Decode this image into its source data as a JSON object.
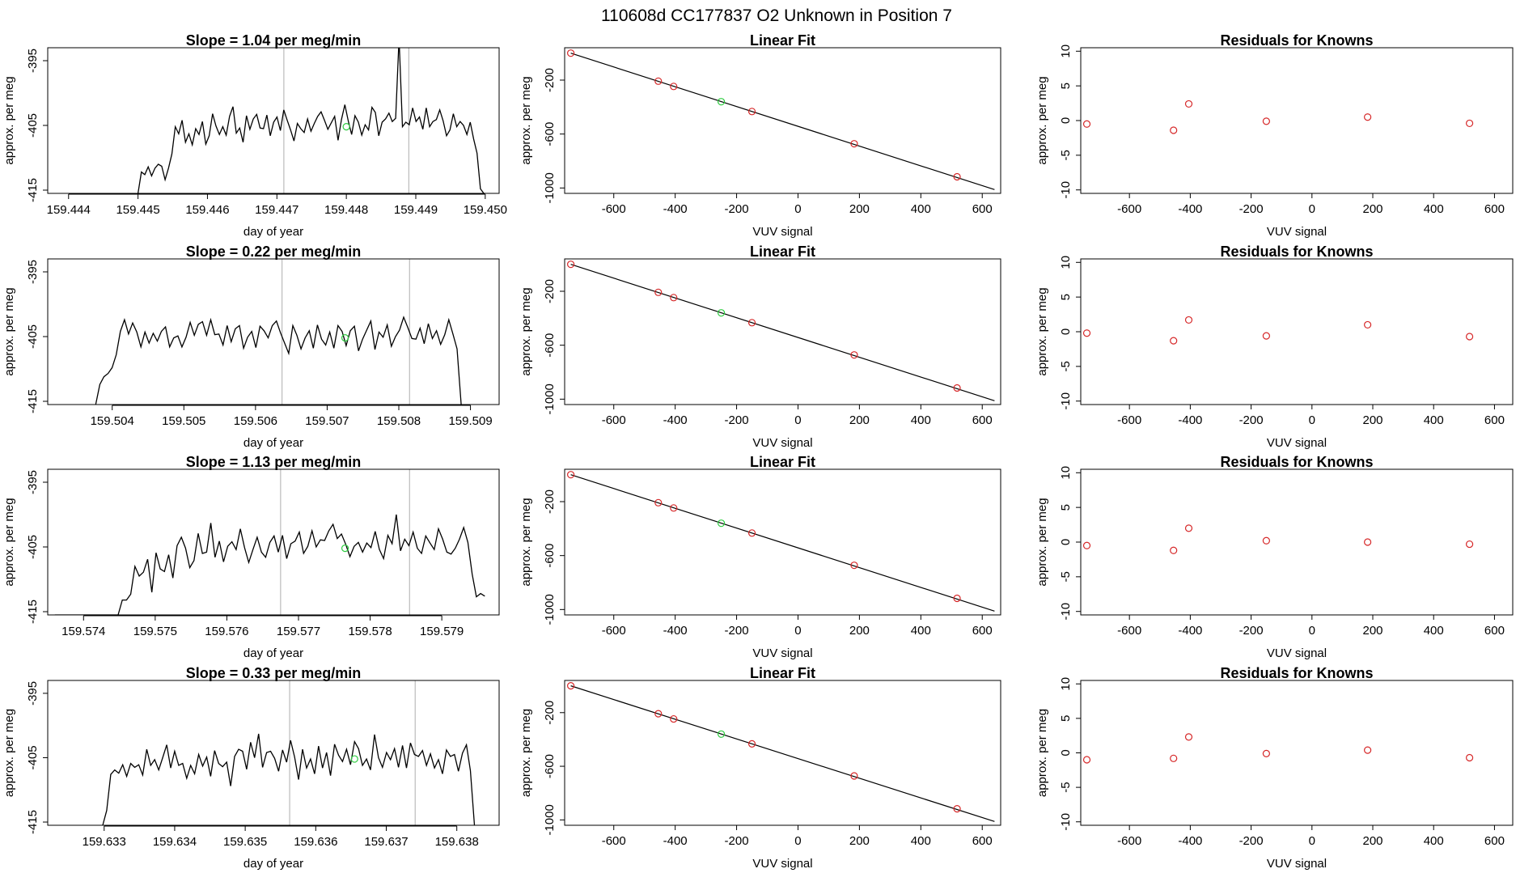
{
  "figure": {
    "super_title": "110608d      CC177837   O2 Unknown in Position  7",
    "colors": {
      "known": "#d62728",
      "unknown": "#2ecc40",
      "line": "#000000",
      "vline": "#bbbbbb",
      "frame": "#000000"
    }
  },
  "chart_data": [
    {
      "type": "line",
      "row": 0,
      "panel": "timeseries",
      "title": "Slope =  1.04  per meg/min",
      "xlabel": "day of year",
      "ylabel": "approx. per meg",
      "xlim": [
        159.4437,
        159.4502
      ],
      "ylim": [
        -415.5,
        -393
      ],
      "xticks": [
        "159.444",
        "159.445",
        "159.446",
        "159.447",
        "159.448",
        "159.449",
        "159.450"
      ],
      "yticks": [
        "-395",
        "-405",
        "-415"
      ],
      "series_start": 159.445,
      "series_end": 159.44998,
      "vlines": [
        159.4471,
        159.4489
      ],
      "unknown_point": [
        159.448,
        -405.2
      ],
      "values": [
        -415.5,
        -412.2,
        -412.6,
        -411.4,
        -412.8,
        -411.6,
        -411.0,
        -411.3,
        -413.4,
        -411.6,
        -409.4,
        -405.2,
        -406.3,
        -404.2,
        -407.6,
        -406.3,
        -408.0,
        -405.5,
        -406.4,
        -404.4,
        -407.9,
        -406.6,
        -403.2,
        -405.1,
        -406.4,
        -405.2,
        -406.5,
        -403.6,
        -402.1,
        -406.2,
        -405.4,
        -407.6,
        -403.5,
        -405.6,
        -404.0,
        -403.3,
        -405.4,
        -405.5,
        -403.4,
        -406.6,
        -404.5,
        -403.7,
        -405.8,
        -402.6,
        -404.2,
        -405.7,
        -407.4,
        -404.7,
        -405.5,
        -406.1,
        -404.0,
        -405.9,
        -404.7,
        -403.6,
        -402.9,
        -404.2,
        -405.6,
        -404.6,
        -403.6,
        -407.3,
        -404.1,
        -401.8,
        -404.3,
        -406.4,
        -403.5,
        -404.5,
        -406.5,
        -404.9,
        -405.7,
        -402.2,
        -403.0,
        -406.6,
        -404.5,
        -404.0,
        -403.1,
        -404.4,
        -403.9,
        -391.5,
        -405.2,
        -404.5,
        -404.9,
        -402.3,
        -404.4,
        -403.7,
        -405.6,
        -402.3,
        -405.2,
        -404.4,
        -404.1,
        -402.6,
        -404.3,
        -406.6,
        -405.7,
        -403.2,
        -405.2,
        -404.4,
        -405.0,
        -406.4,
        -404.5,
        -407.1,
        -409.3,
        -414.8,
        -415.5
      ]
    },
    {
      "type": "scatter",
      "row": 0,
      "panel": "linear_fit",
      "title": "Linear Fit",
      "xlabel": "VUV signal",
      "ylabel": "approx. per meg",
      "xlim": [
        -760,
        660
      ],
      "ylim": [
        -1040,
        40
      ],
      "xticks": [
        -600,
        -400,
        -200,
        0,
        200,
        400,
        600
      ],
      "yticks": [
        -200,
        -600,
        -1000
      ],
      "fit_line": [
        [
          -740,
          0
        ],
        [
          640,
          -1012
        ]
      ],
      "known_x": [
        -740,
        -455,
        -405,
        -150,
        183,
        518
      ],
      "known_y": [
        0,
        -208,
        -247,
        -433,
        -672,
        -917
      ],
      "unknown_point": [
        -250,
        -360
      ]
    },
    {
      "type": "scatter",
      "row": 0,
      "panel": "residuals",
      "title": "Residuals for Knowns",
      "xlabel": "VUV signal",
      "ylabel": "approx. per meg",
      "xlim": [
        -760,
        660
      ],
      "ylim": [
        -10.5,
        10.5
      ],
      "xticks": [
        -600,
        -400,
        -200,
        0,
        200,
        400,
        600
      ],
      "yticks": [
        10,
        5,
        0,
        -5,
        -10
      ],
      "known_x": [
        -740,
        -455,
        -405,
        -150,
        183,
        518
      ],
      "known_y": [
        -0.5,
        -1.4,
        2.4,
        -0.1,
        0.5,
        -0.4
      ]
    },
    {
      "type": "line",
      "row": 1,
      "panel": "timeseries",
      "title": "Slope =  0.22  per meg/min",
      "xlabel": "day of year",
      "ylabel": "approx. per meg",
      "xlim": [
        159.5031,
        159.5094
      ],
      "ylim": [
        -415.5,
        -393
      ],
      "xticks": [
        "159.504",
        "159.505",
        "159.506",
        "159.507",
        "159.508",
        "159.509"
      ],
      "yticks": [
        "-395",
        "-405",
        "-415"
      ],
      "series_start": 159.50377,
      "series_end": 159.50887,
      "vlines": [
        159.50637,
        159.50815
      ],
      "unknown_point": [
        159.50725,
        -405.2
      ],
      "values": [
        -415.5,
        -412.4,
        -411.2,
        -410.7,
        -409.8,
        -407.8,
        -404.2,
        -402.4,
        -404.6,
        -402.9,
        -404.3,
        -406.6,
        -404.3,
        -406.0,
        -404.5,
        -405.7,
        -404.2,
        -403.5,
        -406.6,
        -405.2,
        -404.9,
        -406.6,
        -405.1,
        -402.8,
        -404.8,
        -403.1,
        -402.7,
        -404.8,
        -402.4,
        -404.7,
        -404.6,
        -406.3,
        -403.3,
        -405.8,
        -403.8,
        -403.3,
        -406.8,
        -405.1,
        -404.2,
        -406.7,
        -403.4,
        -404.1,
        -405.2,
        -403.3,
        -402.6,
        -404.4,
        -406.0,
        -407.6,
        -403.3,
        -404.8,
        -406.9,
        -405.2,
        -404.1,
        -406.8,
        -403.2,
        -405.4,
        -406.3,
        -404.3,
        -406.8,
        -403.3,
        -404.2,
        -406.4,
        -404.1,
        -403.4,
        -407.2,
        -405.4,
        -404.0,
        -402.6,
        -407.0,
        -404.3,
        -405.1,
        -403.2,
        -406.5,
        -405.0,
        -404.0,
        -402.0,
        -403.6,
        -405.3,
        -405.4,
        -403.7,
        -406.1,
        -403.0,
        -405.3,
        -404.1,
        -406.2,
        -404.7,
        -402.4,
        -404.6,
        -406.9,
        -415.5
      ]
    },
    {
      "type": "scatter",
      "row": 1,
      "panel": "linear_fit",
      "title": "Linear Fit",
      "xlabel": "VUV signal",
      "ylabel": "approx. per meg",
      "xlim": [
        -760,
        660
      ],
      "ylim": [
        -1040,
        40
      ],
      "xticks": [
        -600,
        -400,
        -200,
        0,
        200,
        400,
        600
      ],
      "yticks": [
        -200,
        -600,
        -1000
      ],
      "fit_line": [
        [
          -740,
          0
        ],
        [
          640,
          -1012
        ]
      ],
      "known_x": [
        -740,
        -455,
        -405,
        -150,
        183,
        518
      ],
      "known_y": [
        0,
        -208,
        -247,
        -433,
        -672,
        -917
      ],
      "unknown_point": [
        -250,
        -360
      ]
    },
    {
      "type": "scatter",
      "row": 1,
      "panel": "residuals",
      "title": "Residuals for Knowns",
      "xlabel": "VUV signal",
      "ylabel": "approx. per meg",
      "xlim": [
        -760,
        660
      ],
      "ylim": [
        -10.5,
        10.5
      ],
      "xticks": [
        -600,
        -400,
        -200,
        0,
        200,
        400,
        600
      ],
      "yticks": [
        10,
        5,
        0,
        -5,
        -10
      ],
      "known_x": [
        -740,
        -455,
        -405,
        -150,
        183,
        518
      ],
      "known_y": [
        -0.2,
        -1.3,
        1.7,
        -0.6,
        1.0,
        -0.7
      ]
    },
    {
      "type": "line",
      "row": 2,
      "panel": "timeseries",
      "title": "Slope =  1.13  per meg/min",
      "xlabel": "day of year",
      "ylabel": "approx. per meg",
      "xlim": [
        159.5735,
        159.5798
      ],
      "ylim": [
        -415.5,
        -393
      ],
      "xticks": [
        "159.574",
        "159.575",
        "159.576",
        "159.577",
        "159.578",
        "159.579"
      ],
      "yticks": [
        "-395",
        "-405",
        "-415"
      ],
      "series_start": 159.5736,
      "series_end": 159.5796,
      "vlines": [
        159.57675,
        159.57855
      ],
      "unknown_point": [
        159.57765,
        -405.2
      ],
      "values": [
        -415.5,
        -415.5,
        -415.5,
        -415.5,
        -415.5,
        -415.5,
        -415.5,
        -415.5,
        -415.5,
        -415.5,
        -415.5,
        -415.5,
        -415.5,
        -415.5,
        -415.5,
        -415.5,
        -413.2,
        -413.2,
        -412.3,
        -408.0,
        -409.5,
        -408.9,
        -406.9,
        -412.0,
        -405.9,
        -408.4,
        -408.8,
        -406.2,
        -409.8,
        -404.8,
        -403.5,
        -405.2,
        -408.2,
        -407.1,
        -402.9,
        -406.0,
        -405.8,
        -401.3,
        -406.6,
        -404.1,
        -407.3,
        -404.9,
        -404.2,
        -405.4,
        -402.2,
        -405.1,
        -407.4,
        -405.4,
        -403.5,
        -405.8,
        -406.6,
        -404.3,
        -403.3,
        -405.8,
        -403.2,
        -406.8,
        -404.5,
        -404.1,
        -402.7,
        -406.0,
        -404.9,
        -402.5,
        -405.0,
        -403.9,
        -404.0,
        -402.5,
        -401.5,
        -403.7,
        -403.0,
        -404.6,
        -406.5,
        -404.9,
        -404.3,
        -405.8,
        -404.4,
        -405.1,
        -402.6,
        -405.4,
        -406.8,
        -403.2,
        -404.5,
        -400.0,
        -405.6,
        -403.8,
        -404.8,
        -402.7,
        -405.2,
        -406.0,
        -403.3,
        -404.4,
        -405.4,
        -402.2,
        -403.8,
        -405.8,
        -406.1,
        -405.2,
        -403.8,
        -402.0,
        -404.3,
        -409.2,
        -412.7,
        -412.2,
        -412.6
      ]
    },
    {
      "type": "scatter",
      "row": 2,
      "panel": "linear_fit",
      "title": "Linear Fit",
      "xlabel": "VUV signal",
      "ylabel": "approx. per meg",
      "xlim": [
        -760,
        660
      ],
      "ylim": [
        -1040,
        40
      ],
      "xticks": [
        -600,
        -400,
        -200,
        0,
        200,
        400,
        600
      ],
      "yticks": [
        -200,
        -600,
        -1000
      ],
      "fit_line": [
        [
          -740,
          0
        ],
        [
          640,
          -1012
        ]
      ],
      "known_x": [
        -740,
        -455,
        -405,
        -150,
        183,
        518
      ],
      "known_y": [
        0,
        -208,
        -247,
        -433,
        -672,
        -917
      ],
      "unknown_point": [
        -250,
        -360
      ]
    },
    {
      "type": "scatter",
      "row": 2,
      "panel": "residuals",
      "title": "Residuals for Knowns",
      "xlabel": "VUV signal",
      "ylabel": "approx. per meg",
      "xlim": [
        -760,
        660
      ],
      "ylim": [
        -10.5,
        10.5
      ],
      "xticks": [
        -600,
        -400,
        -200,
        0,
        200,
        400,
        600
      ],
      "yticks": [
        10,
        5,
        0,
        -5,
        -10
      ],
      "known_x": [
        -740,
        -455,
        -405,
        -150,
        183,
        518
      ],
      "known_y": [
        -0.5,
        -1.2,
        2.0,
        0.2,
        0.0,
        -0.3
      ]
    },
    {
      "type": "line",
      "row": 3,
      "panel": "timeseries",
      "title": "Slope =  0.33  per meg/min",
      "xlabel": "day of year",
      "ylabel": "approx. per meg",
      "xlim": [
        159.6322,
        159.6386
      ],
      "ylim": [
        -415.5,
        -393
      ],
      "xticks": [
        "159.633",
        "159.634",
        "159.635",
        "159.636",
        "159.637",
        "159.638"
      ],
      "yticks": [
        "-395",
        "-405",
        "-415"
      ],
      "series_start": 159.63298,
      "series_end": 159.63825,
      "vlines": [
        159.63563,
        159.63741
      ],
      "unknown_point": [
        159.63655,
        -405.2
      ],
      "values": [
        -415.5,
        -413.2,
        -407.6,
        -406.9,
        -407.4,
        -406.1,
        -407.9,
        -405.9,
        -406.5,
        -406.1,
        -407.7,
        -403.7,
        -406.2,
        -405.3,
        -406.9,
        -405.0,
        -403.0,
        -406.6,
        -404.0,
        -406.2,
        -405.9,
        -408.2,
        -406.2,
        -407.5,
        -404.5,
        -406.3,
        -404.9,
        -407.9,
        -403.9,
        -405.9,
        -406.4,
        -405.7,
        -409.4,
        -404.8,
        -403.7,
        -404.0,
        -406.8,
        -402.6,
        -405.0,
        -401.3,
        -406.5,
        -404.2,
        -404.0,
        -405.1,
        -407.1,
        -403.8,
        -405.7,
        -402.3,
        -404.9,
        -408.4,
        -403.7,
        -406.6,
        -405.2,
        -407.5,
        -403.2,
        -406.6,
        -404.2,
        -407.8,
        -402.9,
        -404.6,
        -405.6,
        -403.7,
        -406.1,
        -402.5,
        -403.6,
        -406.2,
        -405.2,
        -406.9,
        -401.4,
        -405.0,
        -406.5,
        -404.2,
        -405.3,
        -403.6,
        -406.5,
        -403.1,
        -406.6,
        -402.7,
        -404.5,
        -404.8,
        -403.9,
        -406.2,
        -404.4,
        -406.6,
        -405.3,
        -407.5,
        -403.8,
        -404.8,
        -404.5,
        -407.1,
        -404.3,
        -403.0,
        -407.0,
        -415.5
      ]
    },
    {
      "type": "scatter",
      "row": 3,
      "panel": "linear_fit",
      "title": "Linear Fit",
      "xlabel": "VUV signal",
      "ylabel": "approx. per meg",
      "xlim": [
        -760,
        660
      ],
      "ylim": [
        -1040,
        40
      ],
      "xticks": [
        -600,
        -400,
        -200,
        0,
        200,
        400,
        600
      ],
      "yticks": [
        -200,
        -600,
        -1000
      ],
      "fit_line": [
        [
          -740,
          0
        ],
        [
          640,
          -1012
        ]
      ],
      "known_x": [
        -740,
        -455,
        -405,
        -150,
        183,
        518
      ],
      "known_y": [
        0,
        -208,
        -247,
        -433,
        -672,
        -917
      ],
      "unknown_point": [
        -250,
        -360
      ]
    },
    {
      "type": "scatter",
      "row": 3,
      "panel": "residuals",
      "title": "Residuals for Knowns",
      "xlabel": "VUV signal",
      "ylabel": "approx. per meg",
      "xlim": [
        -760,
        660
      ],
      "ylim": [
        -10.5,
        10.5
      ],
      "xticks": [
        -600,
        -400,
        -200,
        0,
        200,
        400,
        600
      ],
      "yticks": [
        10,
        5,
        0,
        -5,
        -10
      ],
      "known_x": [
        -740,
        -455,
        -405,
        -150,
        183,
        518
      ],
      "known_y": [
        -1.0,
        -0.8,
        2.3,
        -0.1,
        0.4,
        -0.7
      ]
    }
  ]
}
